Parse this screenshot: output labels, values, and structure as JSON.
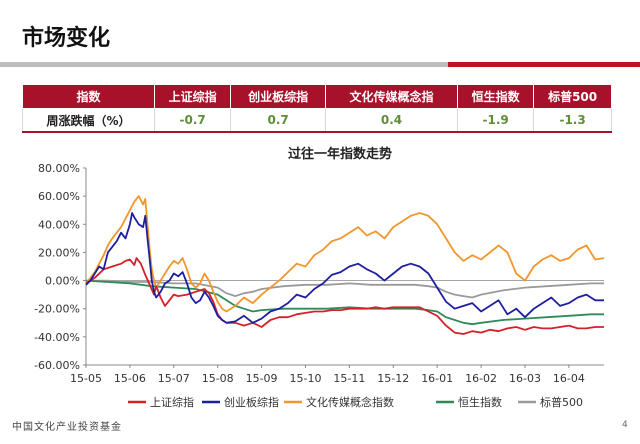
{
  "page": {
    "title": "市场变化",
    "page_number": "4",
    "footer_logo": "中国文化产业投资基金"
  },
  "table": {
    "headers": [
      "指数",
      "上证综指",
      "创业板综指",
      "文化传媒概念指",
      "恒生指数",
      "标普500"
    ],
    "row_label": "周涨跌幅（%）",
    "values": [
      "-0.7",
      "0.7",
      "0.4",
      "-1.9",
      "-1.3"
    ]
  },
  "colors": {
    "accent": "#a8112a",
    "value_text": "#5e8e36",
    "上证综指": "#d42027",
    "创业板综指": "#1e1ea0",
    "文化传媒概念指数": "#f0962a",
    "恒生指数": "#2e8b57",
    "标普500": "#9a9a9a"
  },
  "chart_data": {
    "type": "line",
    "title": "过往一年指数走势",
    "xlabel": "",
    "ylabel": "",
    "ylim": [
      -60,
      80
    ],
    "y_ticks": [
      "80.00%",
      "60.00%",
      "40.00%",
      "20.00%",
      "0.00%",
      "-20.00%",
      "-40.00%",
      "-60.00%"
    ],
    "x_ticks": [
      "15-05",
      "15-06",
      "15-07",
      "15-08",
      "15-09",
      "15-10",
      "15-11",
      "15-12",
      "16-01",
      "16-02",
      "16-03",
      "16-04"
    ],
    "grid": false,
    "legend_position": "bottom",
    "series": [
      {
        "name": "上证综指",
        "color_key": "上证综指",
        "points": [
          [
            0,
            -2
          ],
          [
            0.2,
            2
          ],
          [
            0.4,
            8
          ],
          [
            0.6,
            10
          ],
          [
            0.8,
            12
          ],
          [
            0.9,
            14
          ],
          [
            1.0,
            15
          ],
          [
            1.1,
            11
          ],
          [
            1.15,
            16
          ],
          [
            1.25,
            12
          ],
          [
            1.35,
            4
          ],
          [
            1.45,
            -3
          ],
          [
            1.55,
            -10
          ],
          [
            1.6,
            -4
          ],
          [
            1.7,
            -12
          ],
          [
            1.8,
            -18
          ],
          [
            1.9,
            -14
          ],
          [
            2.0,
            -10
          ],
          [
            2.1,
            -11
          ],
          [
            2.3,
            -10
          ],
          [
            2.5,
            -8
          ],
          [
            2.7,
            -6
          ],
          [
            2.8,
            -9
          ],
          [
            2.9,
            -15
          ],
          [
            3.0,
            -24
          ],
          [
            3.1,
            -28
          ],
          [
            3.2,
            -30
          ],
          [
            3.4,
            -30
          ],
          [
            3.6,
            -32
          ],
          [
            3.8,
            -30
          ],
          [
            4.0,
            -33
          ],
          [
            4.2,
            -28
          ],
          [
            4.4,
            -26
          ],
          [
            4.6,
            -26
          ],
          [
            4.8,
            -24
          ],
          [
            5.0,
            -23
          ],
          [
            5.2,
            -22
          ],
          [
            5.4,
            -22
          ],
          [
            5.6,
            -21
          ],
          [
            5.8,
            -21
          ],
          [
            6.0,
            -20
          ],
          [
            6.2,
            -20
          ],
          [
            6.4,
            -20
          ],
          [
            6.6,
            -19
          ],
          [
            6.8,
            -20
          ],
          [
            7.0,
            -19
          ],
          [
            7.2,
            -19
          ],
          [
            7.4,
            -19
          ],
          [
            7.6,
            -19
          ],
          [
            7.8,
            -22
          ],
          [
            8.0,
            -25
          ],
          [
            8.2,
            -32
          ],
          [
            8.4,
            -37
          ],
          [
            8.6,
            -38
          ],
          [
            8.8,
            -36
          ],
          [
            9.0,
            -37
          ],
          [
            9.2,
            -35
          ],
          [
            9.4,
            -36
          ],
          [
            9.6,
            -34
          ],
          [
            9.8,
            -33
          ],
          [
            10.0,
            -35
          ],
          [
            10.2,
            -33
          ],
          [
            10.4,
            -34
          ],
          [
            10.6,
            -34
          ],
          [
            10.8,
            -33
          ],
          [
            11.0,
            -32
          ],
          [
            11.2,
            -34
          ],
          [
            11.4,
            -34
          ],
          [
            11.6,
            -33
          ],
          [
            11.8,
            -33
          ]
        ]
      },
      {
        "name": "创业板综指",
        "color_key": "创业板综指",
        "points": [
          [
            0,
            -3
          ],
          [
            0.1,
            0
          ],
          [
            0.2,
            5
          ],
          [
            0.3,
            10
          ],
          [
            0.4,
            8
          ],
          [
            0.5,
            20
          ],
          [
            0.6,
            24
          ],
          [
            0.7,
            28
          ],
          [
            0.8,
            34
          ],
          [
            0.9,
            30
          ],
          [
            1.0,
            40
          ],
          [
            1.05,
            48
          ],
          [
            1.1,
            45
          ],
          [
            1.2,
            40
          ],
          [
            1.3,
            38
          ],
          [
            1.35,
            46
          ],
          [
            1.4,
            30
          ],
          [
            1.45,
            15
          ],
          [
            1.5,
            0
          ],
          [
            1.55,
            -8
          ],
          [
            1.6,
            -12
          ],
          [
            1.7,
            -8
          ],
          [
            1.8,
            -2
          ],
          [
            1.9,
            0
          ],
          [
            2.0,
            5
          ],
          [
            2.1,
            3
          ],
          [
            2.2,
            6
          ],
          [
            2.3,
            -2
          ],
          [
            2.4,
            -12
          ],
          [
            2.5,
            -16
          ],
          [
            2.6,
            -14
          ],
          [
            2.7,
            -8
          ],
          [
            2.8,
            -12
          ],
          [
            2.9,
            -18
          ],
          [
            3.0,
            -25
          ],
          [
            3.1,
            -28
          ],
          [
            3.2,
            -30
          ],
          [
            3.4,
            -29
          ],
          [
            3.6,
            -25
          ],
          [
            3.8,
            -30
          ],
          [
            4.0,
            -27
          ],
          [
            4.2,
            -22
          ],
          [
            4.4,
            -20
          ],
          [
            4.6,
            -16
          ],
          [
            4.8,
            -10
          ],
          [
            5.0,
            -12
          ],
          [
            5.2,
            -6
          ],
          [
            5.4,
            -2
          ],
          [
            5.6,
            4
          ],
          [
            5.8,
            6
          ],
          [
            6.0,
            10
          ],
          [
            6.2,
            12
          ],
          [
            6.4,
            8
          ],
          [
            6.6,
            5
          ],
          [
            6.8,
            0
          ],
          [
            7.0,
            5
          ],
          [
            7.2,
            10
          ],
          [
            7.4,
            12
          ],
          [
            7.6,
            10
          ],
          [
            7.8,
            5
          ],
          [
            8.0,
            -5
          ],
          [
            8.2,
            -15
          ],
          [
            8.4,
            -20
          ],
          [
            8.6,
            -18
          ],
          [
            8.8,
            -16
          ],
          [
            9.0,
            -22
          ],
          [
            9.2,
            -18
          ],
          [
            9.4,
            -14
          ],
          [
            9.6,
            -24
          ],
          [
            9.8,
            -20
          ],
          [
            10.0,
            -26
          ],
          [
            10.2,
            -20
          ],
          [
            10.4,
            -16
          ],
          [
            10.6,
            -12
          ],
          [
            10.8,
            -18
          ],
          [
            11.0,
            -16
          ],
          [
            11.2,
            -12
          ],
          [
            11.4,
            -10
          ],
          [
            11.6,
            -14
          ],
          [
            11.8,
            -14
          ]
        ]
      },
      {
        "name": "文化传媒概念指数",
        "color_key": "文化传媒概念指数",
        "points": [
          [
            0,
            -2
          ],
          [
            0.1,
            2
          ],
          [
            0.2,
            6
          ],
          [
            0.3,
            12
          ],
          [
            0.4,
            18
          ],
          [
            0.5,
            25
          ],
          [
            0.6,
            30
          ],
          [
            0.7,
            34
          ],
          [
            0.8,
            38
          ],
          [
            0.9,
            44
          ],
          [
            1.0,
            50
          ],
          [
            1.1,
            56
          ],
          [
            1.2,
            60
          ],
          [
            1.3,
            54
          ],
          [
            1.35,
            58
          ],
          [
            1.4,
            40
          ],
          [
            1.45,
            22
          ],
          [
            1.5,
            8
          ],
          [
            1.55,
            0
          ],
          [
            1.6,
            -5
          ],
          [
            1.7,
            0
          ],
          [
            1.8,
            5
          ],
          [
            1.9,
            10
          ],
          [
            2.0,
            14
          ],
          [
            2.1,
            12
          ],
          [
            2.2,
            16
          ],
          [
            2.3,
            8
          ],
          [
            2.4,
            -2
          ],
          [
            2.5,
            -5
          ],
          [
            2.6,
            -2
          ],
          [
            2.7,
            5
          ],
          [
            2.8,
            0
          ],
          [
            2.9,
            -8
          ],
          [
            3.0,
            -15
          ],
          [
            3.1,
            -20
          ],
          [
            3.2,
            -22
          ],
          [
            3.4,
            -18
          ],
          [
            3.6,
            -12
          ],
          [
            3.8,
            -16
          ],
          [
            4.0,
            -10
          ],
          [
            4.2,
            -5
          ],
          [
            4.4,
            0
          ],
          [
            4.6,
            6
          ],
          [
            4.8,
            12
          ],
          [
            5.0,
            10
          ],
          [
            5.2,
            18
          ],
          [
            5.4,
            22
          ],
          [
            5.6,
            28
          ],
          [
            5.8,
            30
          ],
          [
            6.0,
            34
          ],
          [
            6.2,
            38
          ],
          [
            6.4,
            32
          ],
          [
            6.6,
            35
          ],
          [
            6.8,
            30
          ],
          [
            7.0,
            38
          ],
          [
            7.2,
            42
          ],
          [
            7.4,
            46
          ],
          [
            7.6,
            48
          ],
          [
            7.8,
            46
          ],
          [
            8.0,
            40
          ],
          [
            8.2,
            30
          ],
          [
            8.4,
            20
          ],
          [
            8.6,
            14
          ],
          [
            8.8,
            18
          ],
          [
            9.0,
            15
          ],
          [
            9.2,
            20
          ],
          [
            9.4,
            25
          ],
          [
            9.6,
            20
          ],
          [
            9.8,
            5
          ],
          [
            10.0,
            0
          ],
          [
            10.2,
            10
          ],
          [
            10.4,
            15
          ],
          [
            10.6,
            18
          ],
          [
            10.8,
            14
          ],
          [
            11.0,
            16
          ],
          [
            11.2,
            22
          ],
          [
            11.4,
            25
          ],
          [
            11.6,
            15
          ],
          [
            11.8,
            16
          ]
        ]
      },
      {
        "name": "恒生指数",
        "color_key": "恒生指数",
        "points": [
          [
            0,
            0
          ],
          [
            0.5,
            -1
          ],
          [
            1.0,
            -2
          ],
          [
            1.5,
            -4
          ],
          [
            2.0,
            -5
          ],
          [
            2.5,
            -6
          ],
          [
            3.0,
            -10
          ],
          [
            3.2,
            -14
          ],
          [
            3.4,
            -18
          ],
          [
            3.6,
            -20
          ],
          [
            3.8,
            -22
          ],
          [
            4.0,
            -21
          ],
          [
            4.5,
            -20
          ],
          [
            5.0,
            -20
          ],
          [
            5.5,
            -20
          ],
          [
            6.0,
            -19
          ],
          [
            6.5,
            -20
          ],
          [
            7.0,
            -20
          ],
          [
            7.5,
            -20
          ],
          [
            7.8,
            -21
          ],
          [
            8.0,
            -22
          ],
          [
            8.2,
            -26
          ],
          [
            8.4,
            -28
          ],
          [
            8.6,
            -30
          ],
          [
            8.8,
            -31
          ],
          [
            9.0,
            -30
          ],
          [
            9.5,
            -28
          ],
          [
            10.0,
            -27
          ],
          [
            10.5,
            -26
          ],
          [
            11.0,
            -25
          ],
          [
            11.5,
            -24
          ],
          [
            11.8,
            -24
          ]
        ]
      },
      {
        "name": "标普500",
        "color_key": "标普500",
        "points": [
          [
            0,
            0
          ],
          [
            0.5,
            0
          ],
          [
            1.0,
            -1
          ],
          [
            1.5,
            -1
          ],
          [
            2.0,
            -2
          ],
          [
            2.5,
            -2
          ],
          [
            3.0,
            -5
          ],
          [
            3.2,
            -9
          ],
          [
            3.4,
            -11
          ],
          [
            3.6,
            -9
          ],
          [
            3.8,
            -8
          ],
          [
            4.0,
            -6
          ],
          [
            4.5,
            -4
          ],
          [
            5.0,
            -3
          ],
          [
            5.5,
            -3
          ],
          [
            6.0,
            -2
          ],
          [
            6.5,
            -3
          ],
          [
            7.0,
            -3
          ],
          [
            7.5,
            -3
          ],
          [
            7.8,
            -4
          ],
          [
            8.0,
            -5
          ],
          [
            8.2,
            -8
          ],
          [
            8.4,
            -10
          ],
          [
            8.6,
            -11
          ],
          [
            8.8,
            -12
          ],
          [
            9.0,
            -10
          ],
          [
            9.5,
            -7
          ],
          [
            10.0,
            -5
          ],
          [
            10.5,
            -4
          ],
          [
            11.0,
            -3
          ],
          [
            11.5,
            -2
          ],
          [
            11.8,
            -2
          ]
        ]
      }
    ]
  }
}
